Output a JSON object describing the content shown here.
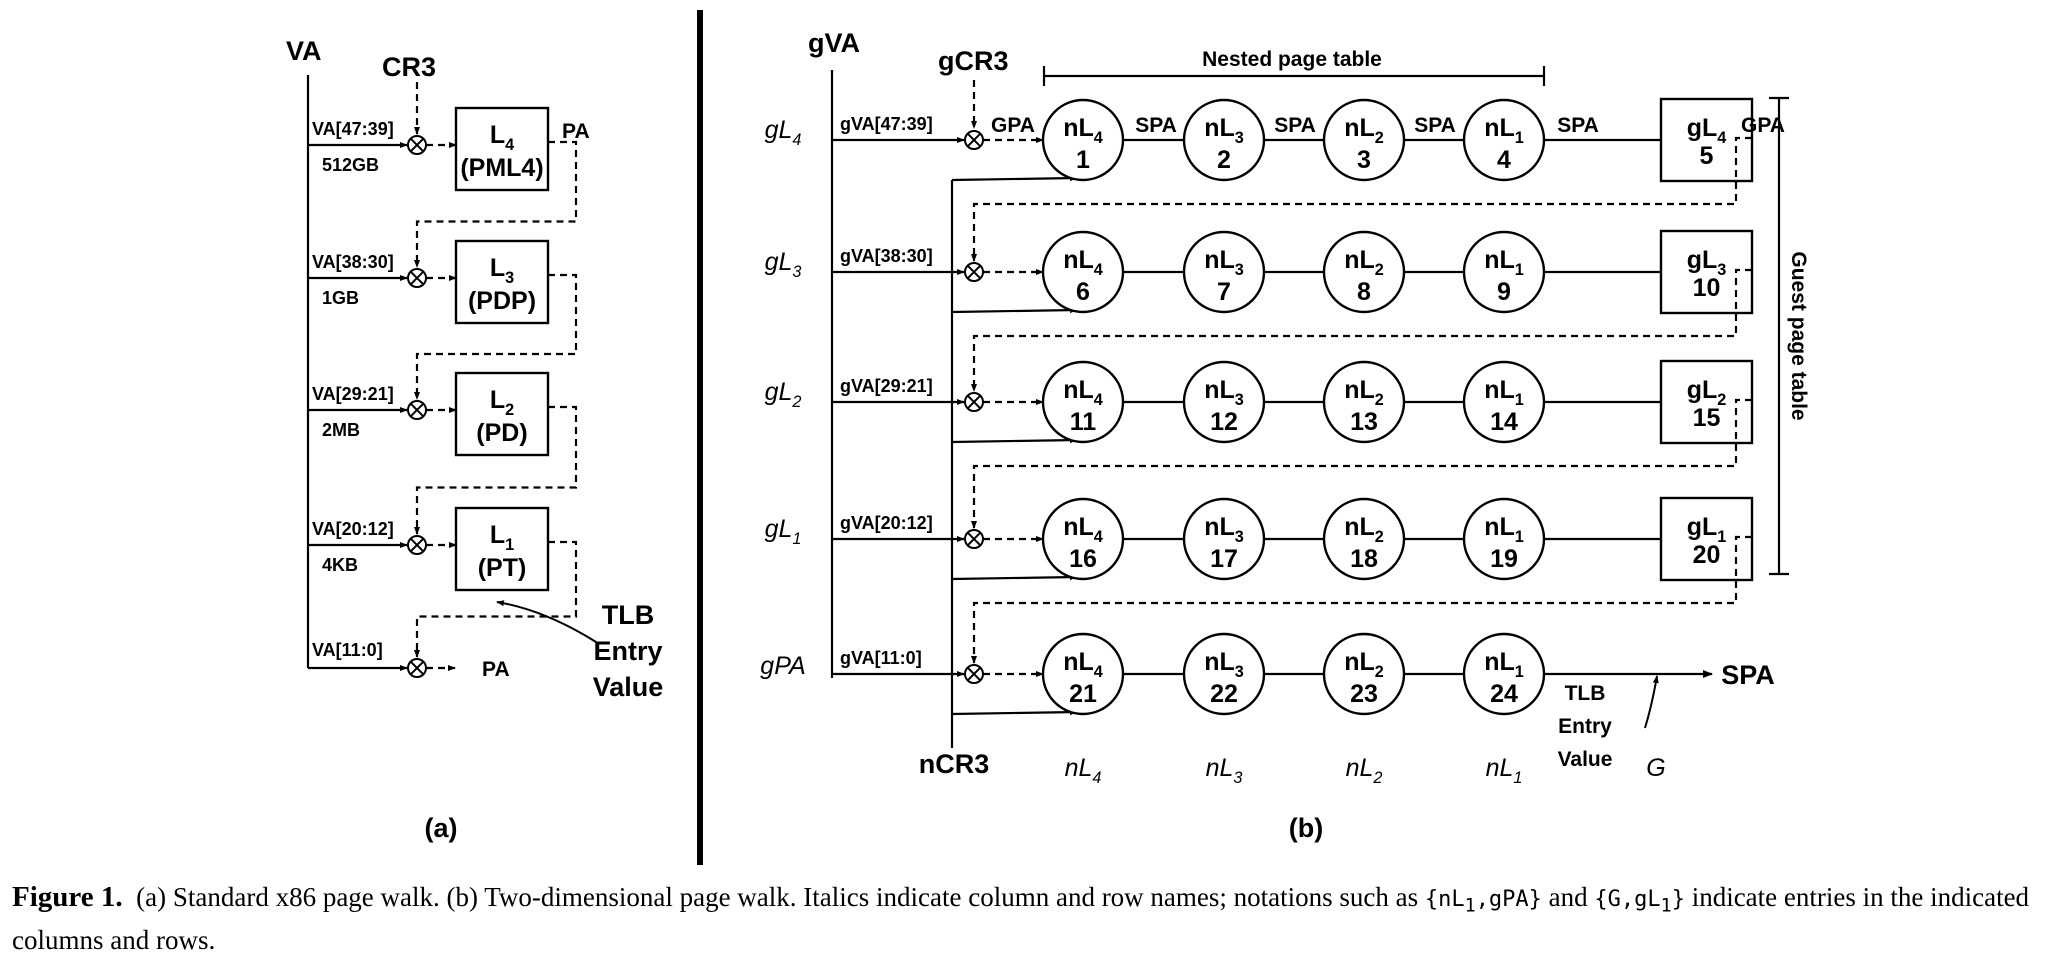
{
  "panel_a": {
    "va_label": "VA",
    "cr3_label": "CR3",
    "levels": [
      {
        "bits": "VA[47:39]",
        "size": "512GB",
        "name": "L",
        "sub": "4",
        "desc": "(PML4)"
      },
      {
        "bits": "VA[38:30]",
        "size": "1GB",
        "name": "L",
        "sub": "3",
        "desc": "(PDP)"
      },
      {
        "bits": "VA[29:21]",
        "size": "2MB",
        "name": "L",
        "sub": "2",
        "desc": "(PD)"
      },
      {
        "bits": "VA[20:12]",
        "size": "4KB",
        "name": "L",
        "sub": "1",
        "desc": "(PT)"
      }
    ],
    "pa_top": "PA",
    "offset_bits": "VA[11:0]",
    "pa_bottom": "PA",
    "tlb_lines": [
      "TLB",
      "Entry",
      "Value"
    ],
    "panel_label": "(a)"
  },
  "panel_b": {
    "gva_label": "gVA",
    "gcr3_label": "gCR3",
    "ncr3_label": "nCR3",
    "nested_title": "Nested page table",
    "guest_title": "Guest page table",
    "gpa_label": "GPA",
    "gpa_right_label": "GPA",
    "spa_label": "SPA",
    "spa_final": "SPA",
    "rows": [
      {
        "rname": "gL",
        "rsub": "4",
        "bits": "gVA[47:39]",
        "nums": [
          "1",
          "2",
          "3",
          "4"
        ],
        "gnum": "5",
        "gsub": "4"
      },
      {
        "rname": "gL",
        "rsub": "3",
        "bits": "gVA[38:30]",
        "nums": [
          "6",
          "7",
          "8",
          "9"
        ],
        "gnum": "10",
        "gsub": "3"
      },
      {
        "rname": "gL",
        "rsub": "2",
        "bits": "gVA[29:21]",
        "nums": [
          "11",
          "12",
          "13",
          "14"
        ],
        "gnum": "15",
        "gsub": "2"
      },
      {
        "rname": "gL",
        "rsub": "1",
        "bits": "gVA[20:12]",
        "nums": [
          "16",
          "17",
          "18",
          "19"
        ],
        "gnum": "20",
        "gsub": "1"
      },
      {
        "rname": "gPA",
        "rsub": "",
        "bits": "gVA[11:0]",
        "nums": [
          "21",
          "22",
          "23",
          "24"
        ],
        "gnum": "",
        "gsub": ""
      }
    ],
    "node_name": "nL",
    "col_subs": [
      "4",
      "3",
      "2",
      "1"
    ],
    "col_names": [
      {
        "name": "nL",
        "sub": "4"
      },
      {
        "name": "nL",
        "sub": "3"
      },
      {
        "name": "nL",
        "sub": "2"
      },
      {
        "name": "nL",
        "sub": "1"
      }
    ],
    "g_col": "G",
    "tlb_lines": [
      "TLB",
      "Entry",
      "Value"
    ],
    "panel_label": "(b)"
  },
  "caption": {
    "fig": "Figure 1.",
    "t1": "(a) Standard x86 page walk. (b) Two-dimensional page walk. Italics indicate column and row names; notations such as ",
    "n1": "{nL",
    "n1sub": "1",
    "n1end": ",gPA}",
    "t2": " and ",
    "n2": "{G,gL",
    "n2sub": "1",
    "n2end": "}",
    "t3": " indicate entries in the indicated columns and rows."
  }
}
